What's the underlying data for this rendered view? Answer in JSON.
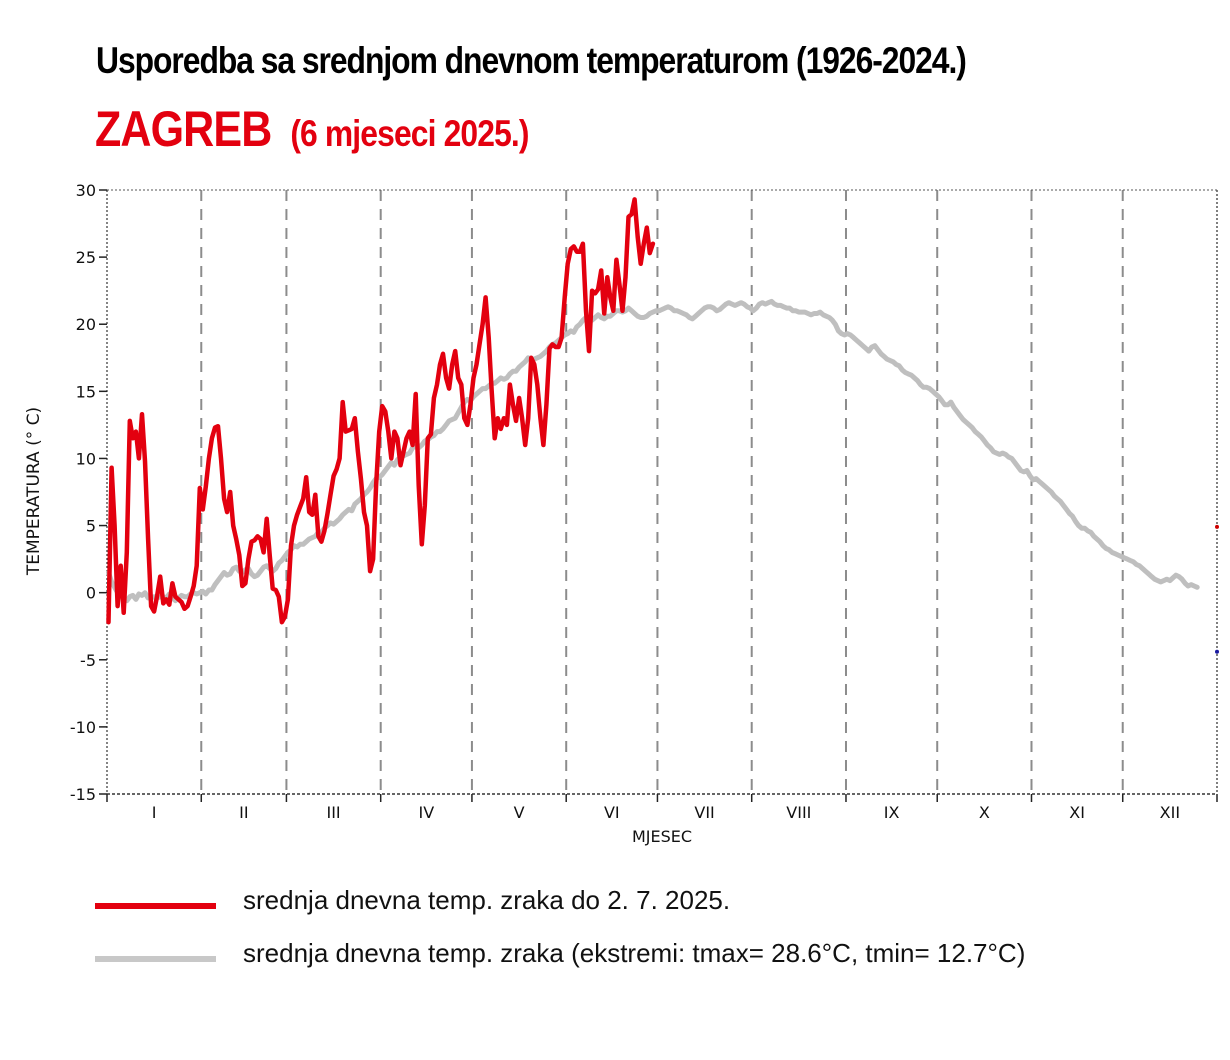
{
  "header": {
    "title": "Usporedba sa srednjom dnevnom temperaturom (1926-2024.)",
    "city": "ZAGREB",
    "period": "(6 mjeseci 2025.)"
  },
  "colors": {
    "current": "#e3000f",
    "climatology": "#bfbfbf",
    "grid": "#8c8c8c",
    "axis": "#333333"
  },
  "legend": [
    {
      "label": "srednja dnevna temp. zraka do 2. 7. 2025.",
      "color": "#e3000f"
    },
    {
      "label": "srednja dnevna temp. zraka (ekstremi: tmax= 28.6°C, tmin= 12.7°C)",
      "color": "#c8c8c8"
    }
  ],
  "chart_data": {
    "type": "line",
    "title": "Usporedba sa srednjom dnevnom temperaturom (1926-2024.)",
    "subtitle": "ZAGREB (6 mjeseci 2025.)",
    "xlabel": "MJESEC",
    "ylabel": "TEMPERATURA (° C)",
    "ylim": [
      -15,
      30
    ],
    "yticks": [
      30,
      25,
      20,
      15,
      10,
      5,
      0,
      -5,
      -10,
      -15
    ],
    "xlim_days": [
      0,
      365
    ],
    "month_labels": [
      "I",
      "II",
      "III",
      "IV",
      "V",
      "VI",
      "VII",
      "VIII",
      "IX",
      "X",
      "XI",
      "XII"
    ],
    "month_start_days": [
      0,
      31,
      59,
      90,
      120,
      151,
      181,
      212,
      243,
      273,
      304,
      334,
      365
    ],
    "grid": "vertical dashed at month boundaries",
    "legend_position": "bottom",
    "series": [
      {
        "name": "srednja dnevna temp. zraka do 2. 7. 2025.",
        "x_start_day": 1,
        "values": [
          -2.2,
          9.3,
          5.0,
          -1.0,
          2.0,
          -1.5,
          3.0,
          12.8,
          11.5,
          12.0,
          10.0,
          13.3,
          9.8,
          4.0,
          -1.0,
          -1.4,
          -0.2,
          1.2,
          -0.8,
          -0.5,
          -0.9,
          0.7,
          -0.3,
          -0.5,
          -0.7,
          -1.2,
          -1.0,
          -0.3,
          0.5,
          2.0,
          7.8,
          6.2,
          7.9,
          10.0,
          11.5,
          12.3,
          12.4,
          10.0,
          7.0,
          6.0,
          7.5,
          5.0,
          4.0,
          2.8,
          0.5,
          0.7,
          2.5,
          3.8,
          3.9,
          4.2,
          4.0,
          3.0,
          5.5,
          2.8,
          0.3,
          0.2,
          -0.3,
          -2.2,
          -1.8,
          -0.5,
          3.5,
          5.0,
          5.8,
          6.4,
          7.0,
          8.6,
          6.0,
          5.8,
          7.3,
          4.2,
          3.8,
          4.6,
          5.9,
          7.3,
          8.7,
          9.2,
          10.0,
          14.2,
          12.0,
          12.1,
          12.2,
          13.0,
          10.5,
          8.5,
          6.0,
          5.0,
          1.6,
          2.5,
          8.0,
          12.0,
          13.9,
          13.5,
          12.0,
          10.0,
          12.0,
          11.5,
          9.5,
          10.5,
          11.5,
          12.0,
          11.0,
          14.8,
          8.0,
          3.6,
          6.5,
          11.5,
          11.8,
          14.5,
          15.5,
          17.0,
          17.8,
          16.0,
          15.2,
          17.0,
          18.0,
          16.0,
          15.5,
          13.0,
          12.5,
          14.0,
          16.0,
          17.0,
          18.5,
          20.0,
          22.0,
          19.0,
          15.0,
          11.5,
          13.0,
          12.2,
          13.0,
          12.5,
          15.5,
          14.0,
          12.8,
          14.5,
          13.0,
          11.0,
          13.0,
          17.5,
          17.0,
          15.5,
          13.0,
          11.0,
          14.0,
          18.2,
          18.5,
          18.3,
          18.3,
          19.0,
          22.0,
          24.5,
          25.6,
          25.8,
          25.4,
          25.4,
          26.0,
          21.0,
          18.0,
          22.5,
          22.3,
          22.6,
          24.0,
          20.8,
          23.5,
          22.0,
          21.0,
          24.8,
          23.0,
          21.0,
          23.5,
          28.0,
          28.2,
          29.3,
          26.5,
          24.5,
          26.0,
          27.2,
          25.3,
          26.0
        ]
      },
      {
        "name": "srednja dnevna temp. zraka (1926-2024.)",
        "x_start_day": 1,
        "values": [
          1.5,
          0.8,
          0.4,
          0.0,
          0.0,
          -0.5,
          -0.6,
          -0.3,
          -0.2,
          -0.5,
          -0.1,
          -0.2,
          0.0,
          -0.4,
          -0.4,
          -0.3,
          -0.4,
          -0.3,
          -0.3,
          -0.4,
          -0.1,
          -0.4,
          -0.6,
          -0.4,
          -0.2,
          -0.3,
          -0.3,
          -0.1,
          0.0,
          -0.1,
          0.0,
          0.1,
          -0.1,
          0.2,
          0.2,
          0.6,
          0.9,
          1.2,
          1.5,
          1.3,
          1.4,
          1.8,
          1.9,
          1.6,
          1.5,
          1.7,
          1.8,
          1.4,
          1.2,
          1.3,
          1.6,
          1.9,
          2.0,
          1.8,
          1.6,
          1.8,
          2.2,
          2.4,
          2.7,
          3.0,
          3.2,
          3.5,
          3.4,
          3.6,
          3.6,
          3.8,
          4.0,
          4.1,
          4.2,
          4.5,
          4.5,
          4.8,
          5.0,
          5.2,
          5.1,
          5.3,
          5.5,
          5.8,
          6.0,
          6.2,
          6.1,
          6.6,
          6.8,
          7.0,
          7.3,
          7.5,
          7.8,
          8.2,
          8.5,
          8.6,
          8.8,
          9.1,
          9.4,
          9.7,
          9.5,
          9.9,
          10.1,
          10.2,
          10.3,
          10.4,
          10.8,
          10.9,
          10.8,
          11.0,
          11.3,
          11.4,
          11.6,
          11.7,
          12.0,
          12.0,
          12.2,
          12.5,
          12.8,
          12.9,
          13.0,
          13.4,
          13.8,
          14.2,
          14.4,
          14.3,
          14.6,
          14.8,
          15.0,
          15.2,
          15.2,
          15.4,
          15.6,
          15.6,
          15.8,
          16.0,
          15.9,
          16.0,
          16.3,
          16.5,
          16.5,
          16.8,
          17.0,
          17.2,
          17.5,
          17.4,
          17.4,
          17.5,
          17.6,
          17.8,
          18.0,
          18.3,
          18.5,
          18.6,
          18.8,
          19.0,
          19.2,
          19.3,
          19.5,
          19.4,
          19.8,
          20.0,
          20.3,
          20.5,
          20.2,
          20.3,
          20.5,
          20.7,
          20.5,
          20.4,
          20.6,
          20.6,
          20.8,
          21.0,
          21.0,
          20.9,
          21.0,
          21.2,
          21.0,
          20.8,
          20.6,
          20.5,
          20.5,
          20.6,
          20.8,
          20.9,
          21.0,
          21.0,
          21.1,
          21.2,
          21.3,
          21.2,
          21.0,
          21.0,
          20.9,
          20.8,
          20.7,
          20.5,
          20.4,
          20.6,
          20.8,
          21.0,
          21.2,
          21.3,
          21.3,
          21.2,
          21.0,
          21.1,
          21.3,
          21.5,
          21.6,
          21.5,
          21.4,
          21.5,
          21.6,
          21.5,
          21.3,
          21.2,
          21.0,
          21.2,
          21.5,
          21.6,
          21.5,
          21.6,
          21.7,
          21.5,
          21.4,
          21.4,
          21.3,
          21.2,
          21.2,
          21.0,
          21.0,
          20.9,
          20.9,
          20.9,
          20.8,
          20.7,
          20.8,
          20.8,
          20.9,
          20.7,
          20.6,
          20.5,
          20.3,
          20.0,
          19.5,
          19.3,
          19.2,
          19.3,
          19.2,
          19.0,
          18.8,
          18.6,
          18.4,
          18.2,
          18.0,
          18.3,
          18.4,
          18.1,
          17.8,
          17.6,
          17.4,
          17.3,
          17.2,
          17.0,
          16.9,
          16.6,
          16.4,
          16.3,
          16.2,
          16.0,
          15.8,
          15.5,
          15.3,
          15.3,
          15.2,
          15.0,
          14.8,
          14.6,
          14.3,
          14.0,
          14.0,
          14.2,
          13.8,
          13.5,
          13.2,
          12.9,
          12.7,
          12.5,
          12.3,
          12.0,
          11.8,
          11.6,
          11.3,
          11.0,
          10.8,
          10.5,
          10.4,
          10.3,
          10.4,
          10.3,
          10.1,
          10.0,
          9.7,
          9.4,
          9.1,
          9.0,
          9.1,
          8.7,
          8.4,
          8.5,
          8.3,
          8.1,
          7.9,
          7.7,
          7.5,
          7.2,
          7.0,
          6.8,
          6.5,
          6.2,
          5.9,
          5.7,
          5.3,
          5.0,
          4.8,
          4.8,
          4.6,
          4.5,
          4.2,
          4.0,
          3.8,
          3.5,
          3.3,
          3.2,
          3.0,
          2.9,
          2.8,
          2.7,
          2.6,
          2.5,
          2.4,
          2.3,
          2.1,
          2.0,
          1.8,
          1.6,
          1.4,
          1.2,
          1.0,
          0.9,
          0.8,
          0.9,
          1.0,
          0.9,
          1.1,
          1.3,
          1.2,
          1.0,
          0.7,
          0.5,
          0.6,
          0.5,
          0.4
        ]
      }
    ]
  }
}
